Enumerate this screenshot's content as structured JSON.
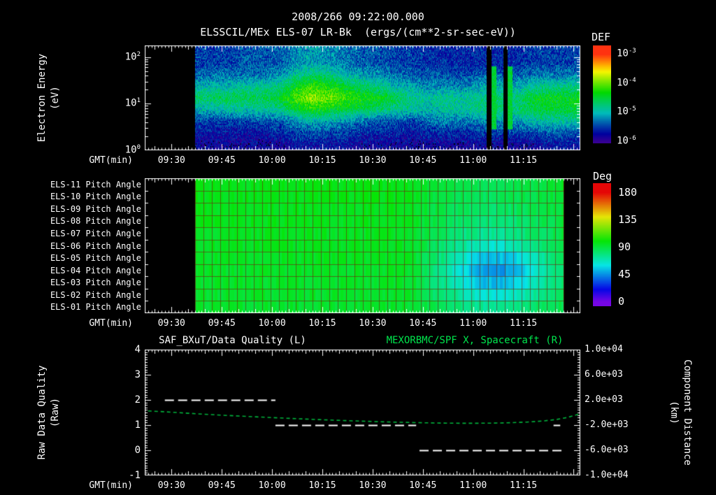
{
  "header": {
    "timestamp_title": "2008/266 09:22:00.000",
    "plot_title": "ELSSCIL/MEx ELS-07 LR-Bk  (ergs/(cm**2-sr-sec-eV))"
  },
  "colors": {
    "background": "#000000",
    "foreground": "#ffffff",
    "title_green": "#00e64d",
    "curve_green": "#00b33c",
    "grid_red": "#6e2008"
  },
  "time_axis": {
    "label": "GMT(min)",
    "start_minute": 562,
    "end_minute": 692,
    "ticks": [
      {
        "label": "09:30",
        "minute": 570
      },
      {
        "label": "09:45",
        "minute": 585
      },
      {
        "label": "10:00",
        "minute": 600
      },
      {
        "label": "10:15",
        "minute": 615
      },
      {
        "label": "10:30",
        "minute": 630
      },
      {
        "label": "10:45",
        "minute": 645
      },
      {
        "label": "11:00",
        "minute": 660
      },
      {
        "label": "11:15",
        "minute": 675
      }
    ]
  },
  "panel1": {
    "ylabel_line1": "Electron Energy",
    "ylabel_line2": "(eV)",
    "ytick_labels": [
      "10^2",
      "10^1",
      "10^0"
    ],
    "colorbar": {
      "title": "DEF",
      "tick_labels": [
        "10^-3",
        "10^-4",
        "10^-5",
        "10^-6"
      ]
    }
  },
  "panel2": {
    "row_labels": [
      "ELS-11 Pitch Angle",
      "ELS-10 Pitch Angle",
      "ELS-09 Pitch Angle",
      "ELS-08 Pitch Angle",
      "ELS-07 Pitch Angle",
      "ELS-06 Pitch Angle",
      "ELS-05 Pitch Angle",
      "ELS-04 Pitch Angle",
      "ELS-03 Pitch Angle",
      "ELS-02 Pitch Angle",
      "ELS-01 Pitch Angle"
    ],
    "colorbar": {
      "title": "Deg",
      "tick_labels": [
        "180",
        "135",
        "90",
        "45",
        "0"
      ]
    }
  },
  "panel3": {
    "title_left": "SAF_BXuT/Data Quality (L)",
    "title_right": "MEXORBMC/SPF X, Spacecraft (R)",
    "ylabel_line1": "Raw Data Quality",
    "ylabel_line2": "(Raw)",
    "ytick_labels": [
      "4",
      "3",
      "2",
      "1",
      "0",
      "-1"
    ],
    "right_label_line1": "Component Distance",
    "right_label_line2": "(km)",
    "right_tick_labels": [
      "1.0e+04",
      "6.0e+03",
      "2.0e+03",
      "-2.0e+03",
      "-6.0e+03",
      "-1.0e+04"
    ]
  },
  "chart_data": [
    {
      "type": "heatmap",
      "name": "electron-energy-spectrogram",
      "title": "ELSSCIL/MEx ELS-07 LR-Bk",
      "units": "ergs/(cm**2-sr-sec-eV)",
      "xlabel": "GMT(min)",
      "ylabel": "Electron Energy (eV)",
      "x_range_minutes": [
        562,
        692
      ],
      "data_start_minute": 577,
      "log_energy_range": [
        0,
        2.25
      ],
      "value_scale": "log10 DEF",
      "colorbar_range": [
        -6,
        -3
      ],
      "time_bins_minutes": [
        577,
        582,
        587,
        592,
        597,
        602,
        607,
        612,
        617,
        622,
        627,
        632,
        637,
        642,
        647,
        652,
        657,
        662,
        667,
        672,
        677,
        682,
        687,
        692
      ],
      "log_energy_bins": [
        0.125,
        0.375,
        0.625,
        0.875,
        1.125,
        1.375,
        1.625,
        1.875,
        2.125
      ],
      "values": [
        [
          -5.8,
          -5.7,
          -5.5,
          -5.0,
          -4.7,
          -5.0,
          -5.4,
          -5.5,
          -5.6
        ],
        [
          -5.8,
          -5.7,
          -5.5,
          -5.0,
          -4.7,
          -5.0,
          -5.3,
          -5.5,
          -5.6
        ],
        [
          -5.8,
          -5.7,
          -5.5,
          -4.9,
          -4.6,
          -5.0,
          -5.3,
          -5.5,
          -5.6
        ],
        [
          -5.8,
          -5.7,
          -5.5,
          -4.9,
          -4.6,
          -4.9,
          -5.3,
          -5.4,
          -5.6
        ],
        [
          -5.8,
          -5.7,
          -5.4,
          -4.9,
          -4.6,
          -4.9,
          -5.3,
          -5.4,
          -5.6
        ],
        [
          -5.8,
          -5.6,
          -5.4,
          -4.8,
          -4.5,
          -4.8,
          -5.2,
          -5.4,
          -5.5
        ],
        [
          -5.7,
          -5.5,
          -5.2,
          -4.5,
          -4.1,
          -4.4,
          -4.9,
          -5.2,
          -5.4
        ],
        [
          -5.7,
          -5.4,
          -5.0,
          -4.3,
          -3.9,
          -4.2,
          -4.7,
          -5.1,
          -5.3
        ],
        [
          -5.7,
          -5.5,
          -5.1,
          -4.4,
          -4.0,
          -4.3,
          -4.8,
          -5.2,
          -5.4
        ],
        [
          -5.7,
          -5.5,
          -5.2,
          -4.5,
          -4.2,
          -4.5,
          -5.0,
          -5.3,
          -5.5
        ],
        [
          -5.8,
          -5.6,
          -5.3,
          -4.6,
          -4.3,
          -4.7,
          -5.1,
          -5.4,
          -5.5
        ],
        [
          -5.8,
          -5.6,
          -5.4,
          -4.7,
          -4.4,
          -4.8,
          -5.2,
          -5.4,
          -5.6
        ],
        [
          -5.8,
          -5.6,
          -5.4,
          -4.8,
          -4.6,
          -5.0,
          -5.3,
          -5.5,
          -5.6
        ],
        [
          -5.8,
          -5.7,
          -5.5,
          -4.9,
          -4.8,
          -5.1,
          -5.4,
          -5.5,
          -5.7
        ],
        [
          -5.8,
          -5.6,
          -5.3,
          -5.0,
          -4.9,
          -5.2,
          -5.4,
          -5.6,
          -5.7
        ],
        [
          -5.8,
          -5.6,
          -5.2,
          -4.9,
          -4.8,
          -5.2,
          -5.4,
          -5.6,
          -5.7
        ],
        [
          -5.8,
          -5.6,
          -5.3,
          -4.9,
          -4.9,
          -5.2,
          -5.5,
          -5.6,
          -5.7
        ],
        [
          -5.8,
          -5.5,
          -5.2,
          -4.8,
          -4.8,
          -5.1,
          -5.4,
          -5.6,
          -5.7
        ],
        [
          -5.8,
          -5.5,
          -5.1,
          -4.7,
          -4.7,
          -5.0,
          -5.4,
          -5.6,
          -5.7
        ],
        [
          -5.8,
          -5.5,
          -5.2,
          -4.8,
          -4.8,
          -5.1,
          -5.4,
          -5.6,
          -5.7
        ],
        [
          -5.8,
          -5.5,
          -5.0,
          -4.6,
          -4.5,
          -4.9,
          -5.3,
          -5.5,
          -5.6
        ],
        [
          -5.7,
          -5.4,
          -4.9,
          -4.5,
          -4.4,
          -4.8,
          -5.3,
          -5.5,
          -5.6
        ],
        [
          -5.7,
          -5.4,
          -4.9,
          -4.5,
          -4.4,
          -4.8,
          -5.3,
          -5.5,
          -5.6
        ],
        [
          -5.7,
          -5.4,
          -4.9,
          -4.5,
          -4.4,
          -4.8,
          -5.3,
          -5.5,
          -5.6
        ]
      ],
      "stripes": {
        "dark": [
          [
            664.0,
            665.5
          ],
          [
            669.0,
            670.3
          ]
        ],
        "bright": [
          [
            665.5,
            667.0
          ],
          [
            670.3,
            671.8
          ]
        ]
      }
    },
    {
      "type": "heatmap",
      "name": "pitch-angle-panels",
      "rows_top_to_bottom": [
        "ELS-11",
        "ELS-10",
        "ELS-09",
        "ELS-08",
        "ELS-07",
        "ELS-06",
        "ELS-05",
        "ELS-04",
        "ELS-03",
        "ELS-02",
        "ELS-01"
      ],
      "value_units": "degrees",
      "colorbar_range": [
        0,
        180
      ],
      "data_start_minute": 577,
      "data_end_minute": 687,
      "time_bins_minutes": [
        577,
        582,
        587,
        592,
        597,
        602,
        607,
        612,
        617,
        622,
        627,
        632,
        637,
        642,
        647,
        652,
        657,
        662,
        667,
        672,
        677,
        682,
        687
      ],
      "values": [
        [
          97,
          97,
          97,
          97,
          97,
          97,
          97,
          97,
          97,
          97,
          97,
          97,
          97,
          97,
          92,
          90,
          88,
          87,
          86,
          87,
          89,
          91,
          93
        ],
        [
          97,
          97,
          97,
          97,
          97,
          97,
          97,
          97,
          97,
          97,
          97,
          97,
          97,
          96,
          91,
          89,
          87,
          85,
          85,
          86,
          88,
          90,
          92
        ],
        [
          96,
          96,
          96,
          96,
          96,
          96,
          96,
          96,
          96,
          96,
          96,
          96,
          96,
          96,
          90,
          88,
          85,
          83,
          82,
          84,
          86,
          89,
          91
        ],
        [
          96,
          96,
          96,
          96,
          96,
          96,
          96,
          96,
          96,
          96,
          96,
          96,
          96,
          95,
          89,
          86,
          82,
          80,
          79,
          81,
          84,
          87,
          90
        ],
        [
          95,
          95,
          95,
          95,
          95,
          95,
          95,
          95,
          95,
          95,
          95,
          95,
          95,
          95,
          88,
          84,
          79,
          76,
          74,
          77,
          81,
          85,
          89
        ],
        [
          95,
          95,
          95,
          95,
          95,
          95,
          95,
          95,
          95,
          95,
          95,
          95,
          95,
          94,
          86,
          81,
          73,
          67,
          64,
          68,
          74,
          81,
          87
        ],
        [
          95,
          95,
          95,
          95,
          95,
          95,
          95,
          95,
          95,
          95,
          95,
          95,
          95,
          94,
          84,
          76,
          65,
          56,
          52,
          57,
          66,
          76,
          84
        ],
        [
          94,
          94,
          94,
          94,
          94,
          94,
          94,
          94,
          94,
          94,
          94,
          94,
          94,
          93,
          82,
          72,
          59,
          48,
          44,
          50,
          61,
          72,
          82
        ],
        [
          94,
          94,
          94,
          94,
          94,
          94,
          94,
          94,
          94,
          94,
          94,
          94,
          94,
          93,
          83,
          74,
          63,
          54,
          51,
          56,
          65,
          75,
          83
        ],
        [
          93,
          93,
          93,
          93,
          93,
          93,
          93,
          93,
          93,
          93,
          93,
          93,
          93,
          93,
          85,
          79,
          71,
          64,
          62,
          66,
          73,
          80,
          85
        ],
        [
          93,
          93,
          93,
          93,
          93,
          93,
          93,
          93,
          93,
          93,
          93,
          93,
          93,
          92,
          88,
          84,
          78,
          74,
          73,
          76,
          80,
          84,
          88
        ]
      ]
    },
    {
      "type": "line",
      "name": "data-quality-and-spacecraft-x",
      "left_axis": {
        "label": "Raw Data Quality (Raw)",
        "range": [
          -1,
          4
        ]
      },
      "right_axis": {
        "label": "Component Distance (km)",
        "range": [
          -10000,
          10000
        ]
      },
      "series": [
        {
          "name": "SAF_BXuT/Data Quality",
          "axis": "left",
          "style": "dashed",
          "color": "#ffffff",
          "segments": [
            {
              "value": 2,
              "t_start": 568,
              "t_end": 601
            },
            {
              "value": 1,
              "t_start": 601,
              "t_end": 643
            },
            {
              "value": 0,
              "t_start": 644,
              "t_end": 687
            },
            {
              "value": 1,
              "t_start": 684,
              "t_end": 686
            }
          ]
        },
        {
          "name": "MEXORBMC/SPF X, Spacecraft",
          "axis": "right",
          "style": "dashed",
          "color": "#00b33c",
          "points": [
            [
              563,
              250
            ],
            [
              568,
              120
            ],
            [
              575,
              -120
            ],
            [
              582,
              -340
            ],
            [
              590,
              -560
            ],
            [
              598,
              -760
            ],
            [
              606,
              -950
            ],
            [
              614,
              -1130
            ],
            [
              622,
              -1290
            ],
            [
              630,
              -1430
            ],
            [
              638,
              -1550
            ],
            [
              646,
              -1640
            ],
            [
              652,
              -1690
            ],
            [
              658,
              -1710
            ],
            [
              664,
              -1700
            ],
            [
              670,
              -1640
            ],
            [
              676,
              -1520
            ],
            [
              681,
              -1340
            ],
            [
              685,
              -1100
            ],
            [
              688,
              -800
            ],
            [
              690,
              -500
            ],
            [
              692,
              -200
            ]
          ]
        }
      ]
    }
  ]
}
